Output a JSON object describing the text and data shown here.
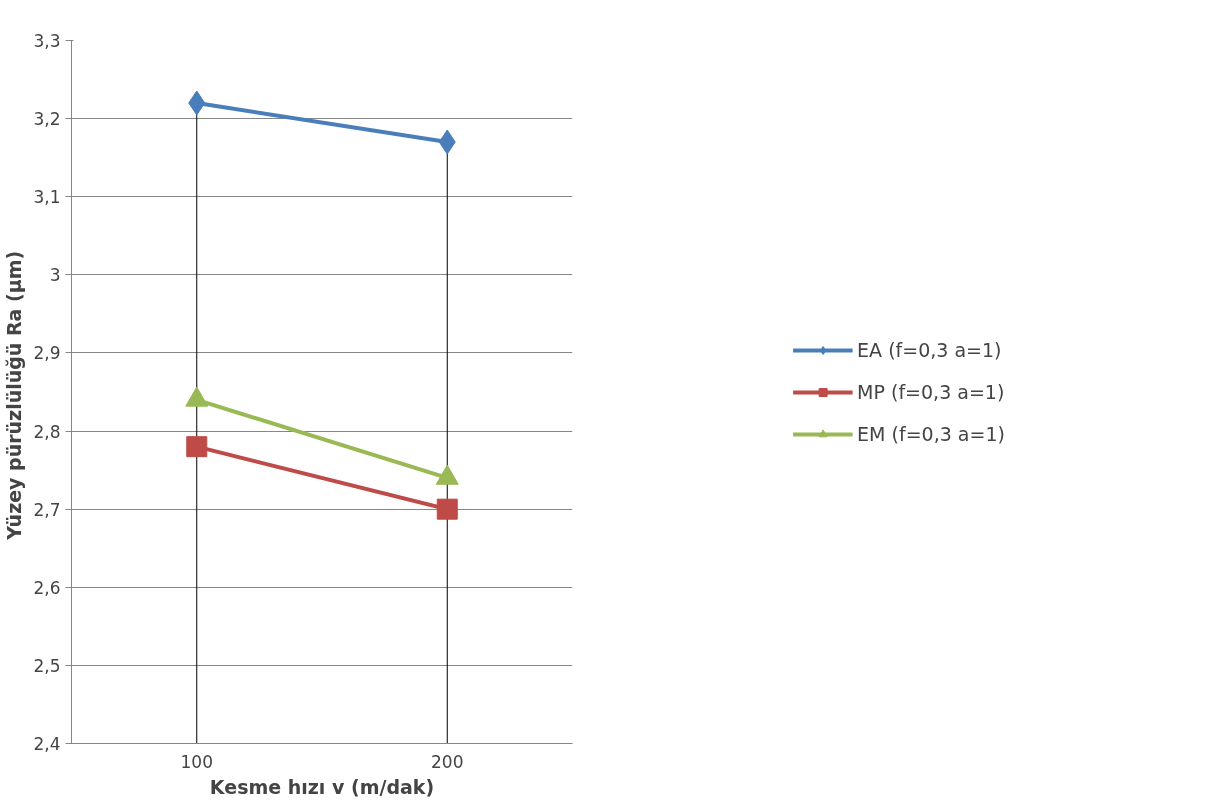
{
  "chart_data": {
    "type": "line",
    "xlabel": "Kesme hızı v (m/dak)",
    "ylabel": "Yüzey pürüzlülüğü  Ra (µm)",
    "categories": [
      "100",
      "200"
    ],
    "series": [
      {
        "name": "EA (f=0,3 a=1)",
        "color": "#4a7ebb",
        "marker": "diamond",
        "values": [
          3.22,
          3.17
        ]
      },
      {
        "name": "MP (f=0,3 a=1)",
        "color": "#be4b48",
        "marker": "square",
        "values": [
          2.78,
          2.7
        ]
      },
      {
        "name": "EM (f=0,3 a=1)",
        "color": "#98b954",
        "marker": "triangle",
        "values": [
          2.84,
          2.74
        ]
      }
    ],
    "ylim": [
      2.4,
      3.3
    ],
    "yticks": [
      {
        "value": 2.4,
        "label": "2,4"
      },
      {
        "value": 2.5,
        "label": "2,5"
      },
      {
        "value": 2.6,
        "label": "2,6"
      },
      {
        "value": 2.7,
        "label": "2,7"
      },
      {
        "value": 2.8,
        "label": "2,8"
      },
      {
        "value": 2.9,
        "label": "2,9"
      },
      {
        "value": 3,
        "label": "3"
      },
      {
        "value": 3.1,
        "label": "3,1"
      },
      {
        "value": 3.2,
        "label": "3,2"
      },
      {
        "value": 3.3,
        "label": "3,3"
      }
    ],
    "grid": true,
    "legend": "right",
    "line_style": "solid"
  }
}
